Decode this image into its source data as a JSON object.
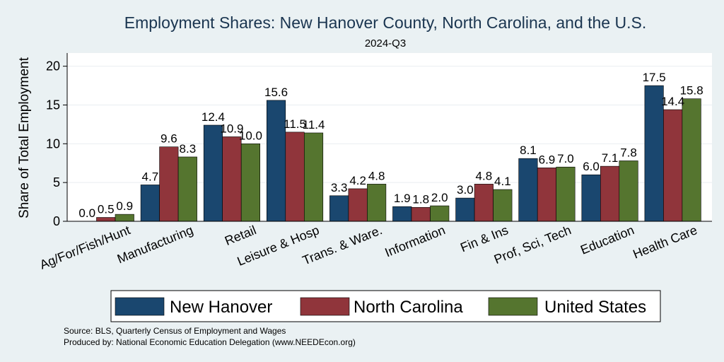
{
  "colors": {
    "background": "#eaf1f3",
    "plot_background": "#ffffff",
    "grid": "#e9eef1",
    "new_hanover": "#1a476f",
    "north_carolina": "#90353b",
    "united_states": "#55752f"
  },
  "chart_data": {
    "type": "bar",
    "title": "Employment Shares: New Hanover County, North Carolina, and the U.S.",
    "subtitle": "2024-Q3",
    "ylabel": "Share of Total Employment",
    "xlabel": "",
    "ylim": [
      0,
      21.7
    ],
    "yticks": [
      0,
      5,
      10,
      15,
      20
    ],
    "grid": true,
    "legend_position": "bottom",
    "categories": [
      "Ag/For/Fish/Hunt",
      "Manufacturing",
      "Retail",
      "Leisure & Hosp",
      "Trans. & Ware.",
      "Information",
      "Fin & Ins",
      "Prof, Sci, Tech",
      "Education",
      "Health Care"
    ],
    "series": [
      {
        "name": "New Hanover",
        "color": "#1a476f",
        "values": [
          0.0,
          4.7,
          12.4,
          15.6,
          3.3,
          1.9,
          3.0,
          8.1,
          6.0,
          17.5
        ]
      },
      {
        "name": "North Carolina",
        "color": "#90353b",
        "values": [
          0.5,
          9.6,
          10.9,
          11.5,
          4.2,
          1.8,
          4.8,
          6.9,
          7.1,
          14.4
        ]
      },
      {
        "name": "United States",
        "color": "#55752f",
        "values": [
          0.9,
          8.3,
          10.0,
          11.4,
          4.8,
          2.0,
          4.1,
          7.0,
          7.8,
          15.8
        ]
      }
    ],
    "notes": [
      "Source: BLS, Quarterly Census of Employment and Wages",
      "Produced by: National Economic Education Delegation (www.NEEDEcon.org)"
    ]
  }
}
